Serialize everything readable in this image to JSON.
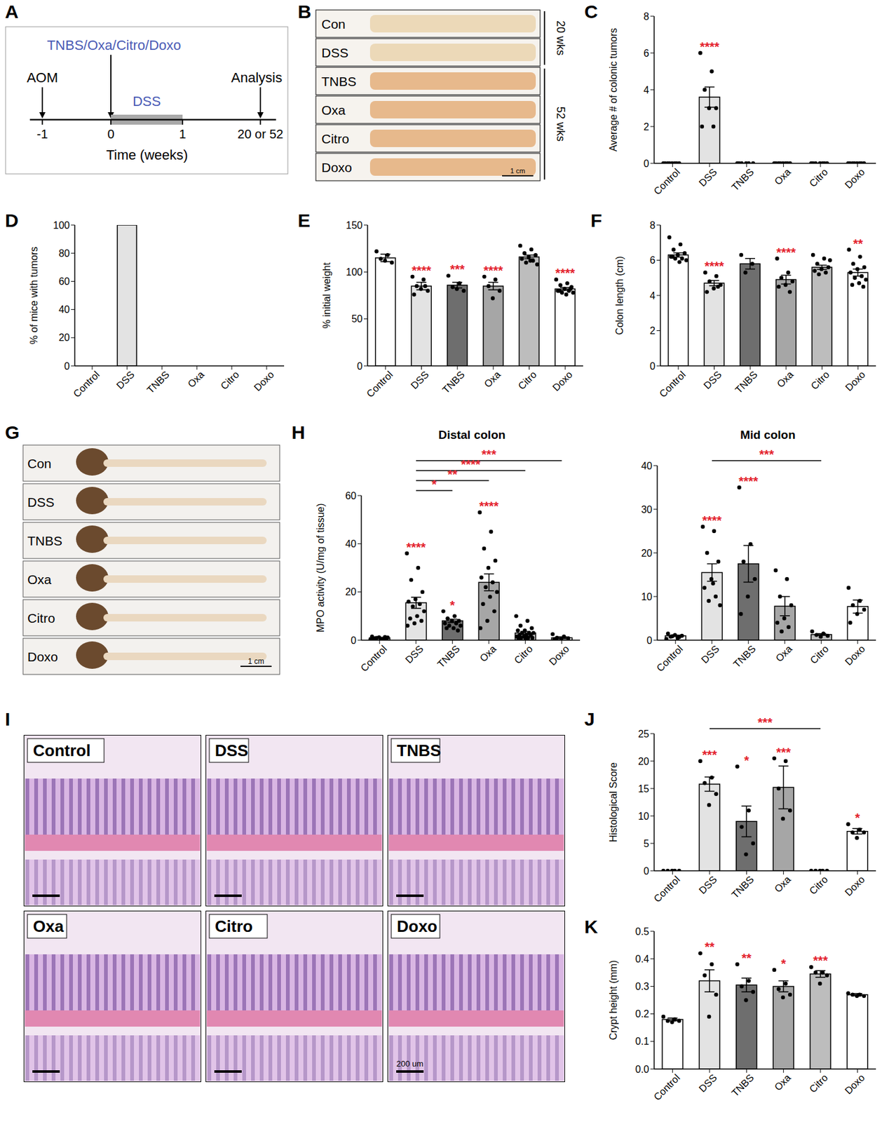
{
  "panels": {
    "A": {
      "label": "A",
      "treatment": "TNBS/Oxa/Citro/Doxo",
      "initiator": "AOM",
      "colitis": "DSS",
      "endpoint": "Analysis",
      "time_ticks": [
        "-1",
        "0",
        "1",
        "20 or 52"
      ],
      "axis_label": "Time (weeks)"
    },
    "B": {
      "label": "B",
      "rows": [
        "Con",
        "DSS",
        "TNBS",
        "Oxa",
        "Citro",
        "Doxo"
      ],
      "groups": [
        {
          "label": "20 wks",
          "members": [
            "Con",
            "DSS"
          ]
        },
        {
          "label": "52 wks",
          "members": [
            "TNBS",
            "Oxa",
            "Citro",
            "Doxo"
          ]
        }
      ],
      "scale_bar": "1 cm"
    },
    "G": {
      "label": "G",
      "rows": [
        "Con",
        "DSS",
        "TNBS",
        "Oxa",
        "Citro",
        "Doxo"
      ],
      "scale_bar": "1 cm"
    },
    "I": {
      "label": "I",
      "images": [
        "Control",
        "DSS",
        "TNBS",
        "Oxa",
        "Citro",
        "Doxo"
      ],
      "scale_bar": "200 um"
    }
  },
  "chart_data": [
    {
      "panel": "C",
      "type": "bar",
      "ylabel": "Average # of colonic tumors",
      "categories": [
        "Control",
        "DSS",
        "TNBS",
        "Oxa",
        "Citro",
        "Doxo"
      ],
      "values": [
        0,
        3.6,
        0,
        0,
        0,
        0
      ],
      "error": [
        0,
        0.55,
        0,
        0,
        0,
        0
      ],
      "points": [
        [
          0,
          0,
          0,
          0,
          0,
          0,
          0,
          0
        ],
        [
          6,
          5,
          4,
          3,
          3,
          2,
          2
        ],
        [
          0,
          0,
          0,
          0,
          0,
          0
        ],
        [
          0,
          0,
          0,
          0,
          0,
          0,
          0,
          0
        ],
        [
          0,
          0,
          0,
          0,
          0,
          0,
          0
        ],
        [
          0,
          0,
          0,
          0,
          0,
          0,
          0,
          0
        ]
      ],
      "significance": [
        null,
        "****",
        null,
        null,
        null,
        null
      ],
      "colors": [
        "#ffffff",
        "#e3e3e3",
        "#6e6e6e",
        "#a6a6a6",
        "#bdbdbd",
        "#ffffff"
      ],
      "ylim": [
        0,
        8
      ],
      "yticks": [
        0,
        2,
        4,
        6,
        8
      ]
    },
    {
      "panel": "D",
      "type": "bar",
      "ylabel": "% of mice with tumors",
      "categories": [
        "Control",
        "DSS",
        "TNBS",
        "Oxa",
        "Citro",
        "Doxo"
      ],
      "values": [
        0,
        100,
        0,
        0,
        0,
        0
      ],
      "colors": [
        "#ffffff",
        "#e3e3e3",
        "#6e6e6e",
        "#a6a6a6",
        "#bdbdbd",
        "#ffffff"
      ],
      "ylim": [
        0,
        100
      ],
      "yticks": [
        0,
        20,
        40,
        60,
        80,
        100
      ]
    },
    {
      "panel": "E",
      "type": "bar",
      "ylabel": "% initial weight",
      "categories": [
        "Control",
        "DSS",
        "TNBS",
        "Oxa",
        "Citro",
        "Doxo"
      ],
      "values": [
        115,
        85,
        86,
        85,
        116,
        82
      ],
      "error": [
        4,
        4,
        3,
        4,
        2,
        1.5
      ],
      "points": [
        [
          122,
          118,
          114,
          110,
          112
        ],
        [
          95,
          92,
          85,
          80,
          82,
          76,
          85
        ],
        [
          96,
          88,
          84,
          80,
          82
        ],
        [
          95,
          92,
          85,
          80,
          72
        ],
        [
          128,
          124,
          120,
          118,
          116,
          114,
          112,
          110,
          108,
          112
        ],
        [
          92,
          88,
          86,
          84,
          82,
          80,
          80,
          78,
          78,
          76,
          80,
          82
        ]
      ],
      "significance": [
        null,
        "****",
        "***",
        "****",
        null,
        "****"
      ],
      "colors": [
        "#ffffff",
        "#e3e3e3",
        "#6e6e6e",
        "#a6a6a6",
        "#bdbdbd",
        "#ffffff"
      ],
      "ylim": [
        0,
        150
      ],
      "yticks": [
        0,
        50,
        100,
        150
      ]
    },
    {
      "panel": "F",
      "type": "bar",
      "ylabel": "Colon length (cm)",
      "categories": [
        "Control",
        "DSS",
        "TNBS",
        "Oxa",
        "Citro",
        "Doxo"
      ],
      "values": [
        6.3,
        4.7,
        5.8,
        4.9,
        5.6,
        5.3
      ],
      "error": [
        0.12,
        0.15,
        0.3,
        0.25,
        0.12,
        0.2
      ],
      "points": [
        [
          7.3,
          6.9,
          6.6,
          6.4,
          6.3,
          6.2,
          6.1,
          6.1,
          6.0,
          5.9,
          6.2
        ],
        [
          5.3,
          5.1,
          4.8,
          4.6,
          4.4,
          4.2,
          4.5
        ],
        [
          6.3,
          5.8,
          5.3
        ],
        [
          6.1,
          5.3,
          5.0,
          4.8,
          4.6,
          4.5,
          4.2
        ],
        [
          6.3,
          6.1,
          5.8,
          5.6,
          5.5,
          5.4,
          5.3,
          5.2,
          6.0
        ],
        [
          6.6,
          6.2,
          5.8,
          5.6,
          5.5,
          5.3,
          5.1,
          5.0,
          4.9,
          4.7,
          4.6,
          4.5
        ]
      ],
      "significance": [
        null,
        "****",
        null,
        "****",
        null,
        "**"
      ],
      "colors": [
        "#ffffff",
        "#e3e3e3",
        "#6e6e6e",
        "#a6a6a6",
        "#bdbdbd",
        "#ffffff"
      ],
      "ylim": [
        0,
        8
      ],
      "yticks": [
        0,
        2,
        4,
        6,
        8
      ]
    },
    {
      "panel": "H",
      "type": "bar",
      "title": "Distal colon",
      "ylabel": "MPO activity (U/mg of tissue)",
      "categories": [
        "Control",
        "DSS",
        "TNBS",
        "Oxa",
        "Citro",
        "Doxo"
      ],
      "values": [
        1,
        15.5,
        8,
        24,
        3,
        1
      ],
      "error": [
        0.15,
        2.3,
        0.7,
        3.5,
        0.6,
        0.4
      ],
      "points": [
        [
          0.3,
          0.5,
          0.8,
          1.0,
          1.2,
          1.5,
          0.6,
          0.9,
          1.1,
          0.4,
          0.7,
          1.3
        ],
        [
          36,
          30,
          25,
          20,
          17,
          16,
          15,
          14,
          12,
          10,
          9,
          8,
          7,
          6
        ],
        [
          12,
          10,
          9,
          8,
          8,
          7,
          7,
          6,
          6,
          5,
          5,
          4
        ],
        [
          53,
          45,
          38,
          33,
          30,
          26,
          24,
          22,
          20,
          18,
          15,
          12,
          8,
          5
        ],
        [
          10,
          8,
          6,
          5,
          4,
          4,
          3,
          3,
          3,
          2,
          2,
          2,
          1.5,
          1.5,
          1,
          1,
          1,
          0.8,
          0.5
        ],
        [
          2.5,
          1.5,
          1,
          0.8,
          0.5,
          0.4
        ]
      ],
      "significance": [
        null,
        "****",
        "*",
        "****",
        null,
        null
      ],
      "comparisons": [
        {
          "from": "DSS",
          "to": "TNBS",
          "label": "*"
        },
        {
          "from": "DSS",
          "to": "Oxa",
          "label": "**"
        },
        {
          "from": "DSS",
          "to": "Citro",
          "label": "****"
        },
        {
          "from": "DSS",
          "to": "Doxo",
          "label": "***"
        }
      ],
      "colors": [
        "#ffffff",
        "#e3e3e3",
        "#6e6e6e",
        "#a6a6a6",
        "#bdbdbd",
        "#ffffff"
      ],
      "ylim": [
        0,
        60
      ],
      "yticks": [
        0,
        20,
        40,
        60
      ]
    },
    {
      "type": "bar",
      "title": "Mid colon",
      "categories": [
        "Control",
        "DSS",
        "TNBS",
        "Oxa",
        "Citro",
        "Doxo"
      ],
      "values": [
        1,
        15.5,
        17.5,
        7.8,
        1.3,
        7.7
      ],
      "error": [
        0.15,
        2.0,
        4.2,
        2.2,
        0.2,
        1.5
      ],
      "points": [
        [
          0.3,
          0.5,
          0.8,
          1.0,
          1.2,
          1.5,
          0.7,
          0.9
        ],
        [
          26,
          25,
          20,
          18,
          14,
          12,
          10,
          9,
          8,
          13
        ],
        [
          35,
          22,
          18,
          14,
          10,
          6
        ],
        [
          16,
          14,
          10,
          8,
          5,
          4,
          3,
          2
        ],
        [
          2,
          1.5,
          1.2,
          1,
          0.8
        ],
        [
          12,
          9,
          8,
          7,
          6,
          4
        ]
      ],
      "significance": [
        null,
        "****",
        "****",
        null,
        null,
        null
      ],
      "comparisons": [
        {
          "from": "DSS",
          "to": "Citro",
          "label": "***"
        }
      ],
      "colors": [
        "#ffffff",
        "#e3e3e3",
        "#6e6e6e",
        "#a6a6a6",
        "#bdbdbd",
        "#ffffff"
      ],
      "ylim": [
        0,
        40
      ],
      "yticks": [
        0,
        10,
        20,
        30,
        40
      ]
    },
    {
      "panel": "J",
      "type": "bar",
      "ylabel": "Histological Score",
      "categories": [
        "Control",
        "DSS",
        "TNBS",
        "Oxa",
        "Citro",
        "Doxo"
      ],
      "values": [
        0,
        15.8,
        9,
        15.2,
        0,
        7.2
      ],
      "error": [
        0,
        1.3,
        2.8,
        3.9,
        0,
        0.5
      ],
      "points": [
        [
          0,
          0,
          0,
          0,
          0
        ],
        [
          20,
          17,
          16,
          14,
          12
        ],
        [
          19,
          11,
          8,
          5,
          3
        ],
        [
          20.5,
          20,
          15,
          11,
          9.5
        ],
        [
          0,
          0,
          0,
          0,
          0
        ],
        [
          8.5,
          7.5,
          7,
          7,
          6
        ]
      ],
      "significance": [
        null,
        "***",
        "*",
        "***",
        null,
        "*"
      ],
      "comparisons": [
        {
          "from": "DSS",
          "to": "Citro",
          "label": "***"
        }
      ],
      "colors": [
        "#ffffff",
        "#e3e3e3",
        "#6e6e6e",
        "#a6a6a6",
        "#bdbdbd",
        "#ffffff"
      ],
      "ylim": [
        0,
        25
      ],
      "yticks": [
        0,
        5,
        10,
        15,
        20,
        25
      ]
    },
    {
      "panel": "K",
      "type": "bar",
      "ylabel": "Crypt height (mm)",
      "categories": [
        "Control",
        "DSS",
        "TNBS",
        "Oxa",
        "Citro",
        "Doxo"
      ],
      "values": [
        0.18,
        0.32,
        0.305,
        0.3,
        0.345,
        0.27
      ],
      "error": [
        0.005,
        0.04,
        0.025,
        0.02,
        0.012,
        0.004
      ],
      "points": [
        [
          0.19,
          0.18,
          0.175,
          0.175,
          0.17
        ],
        [
          0.42,
          0.38,
          0.34,
          0.27,
          0.19
        ],
        [
          0.38,
          0.32,
          0.3,
          0.28,
          0.25
        ],
        [
          0.36,
          0.31,
          0.29,
          0.27,
          0.26
        ],
        [
          0.37,
          0.35,
          0.35,
          0.34,
          0.31
        ],
        [
          0.275,
          0.27,
          0.27,
          0.265,
          0.265
        ]
      ],
      "significance": [
        null,
        "**",
        "**",
        "*",
        "***",
        null
      ],
      "colors": [
        "#ffffff",
        "#e3e3e3",
        "#6e6e6e",
        "#a6a6a6",
        "#bdbdbd",
        "#ffffff"
      ],
      "ylim": [
        0,
        0.5
      ],
      "yticks": [
        {
          "value": 0,
          "label": "0.0"
        },
        0.1,
        0.2,
        0.3,
        0.4,
        0.5
      ]
    }
  ]
}
